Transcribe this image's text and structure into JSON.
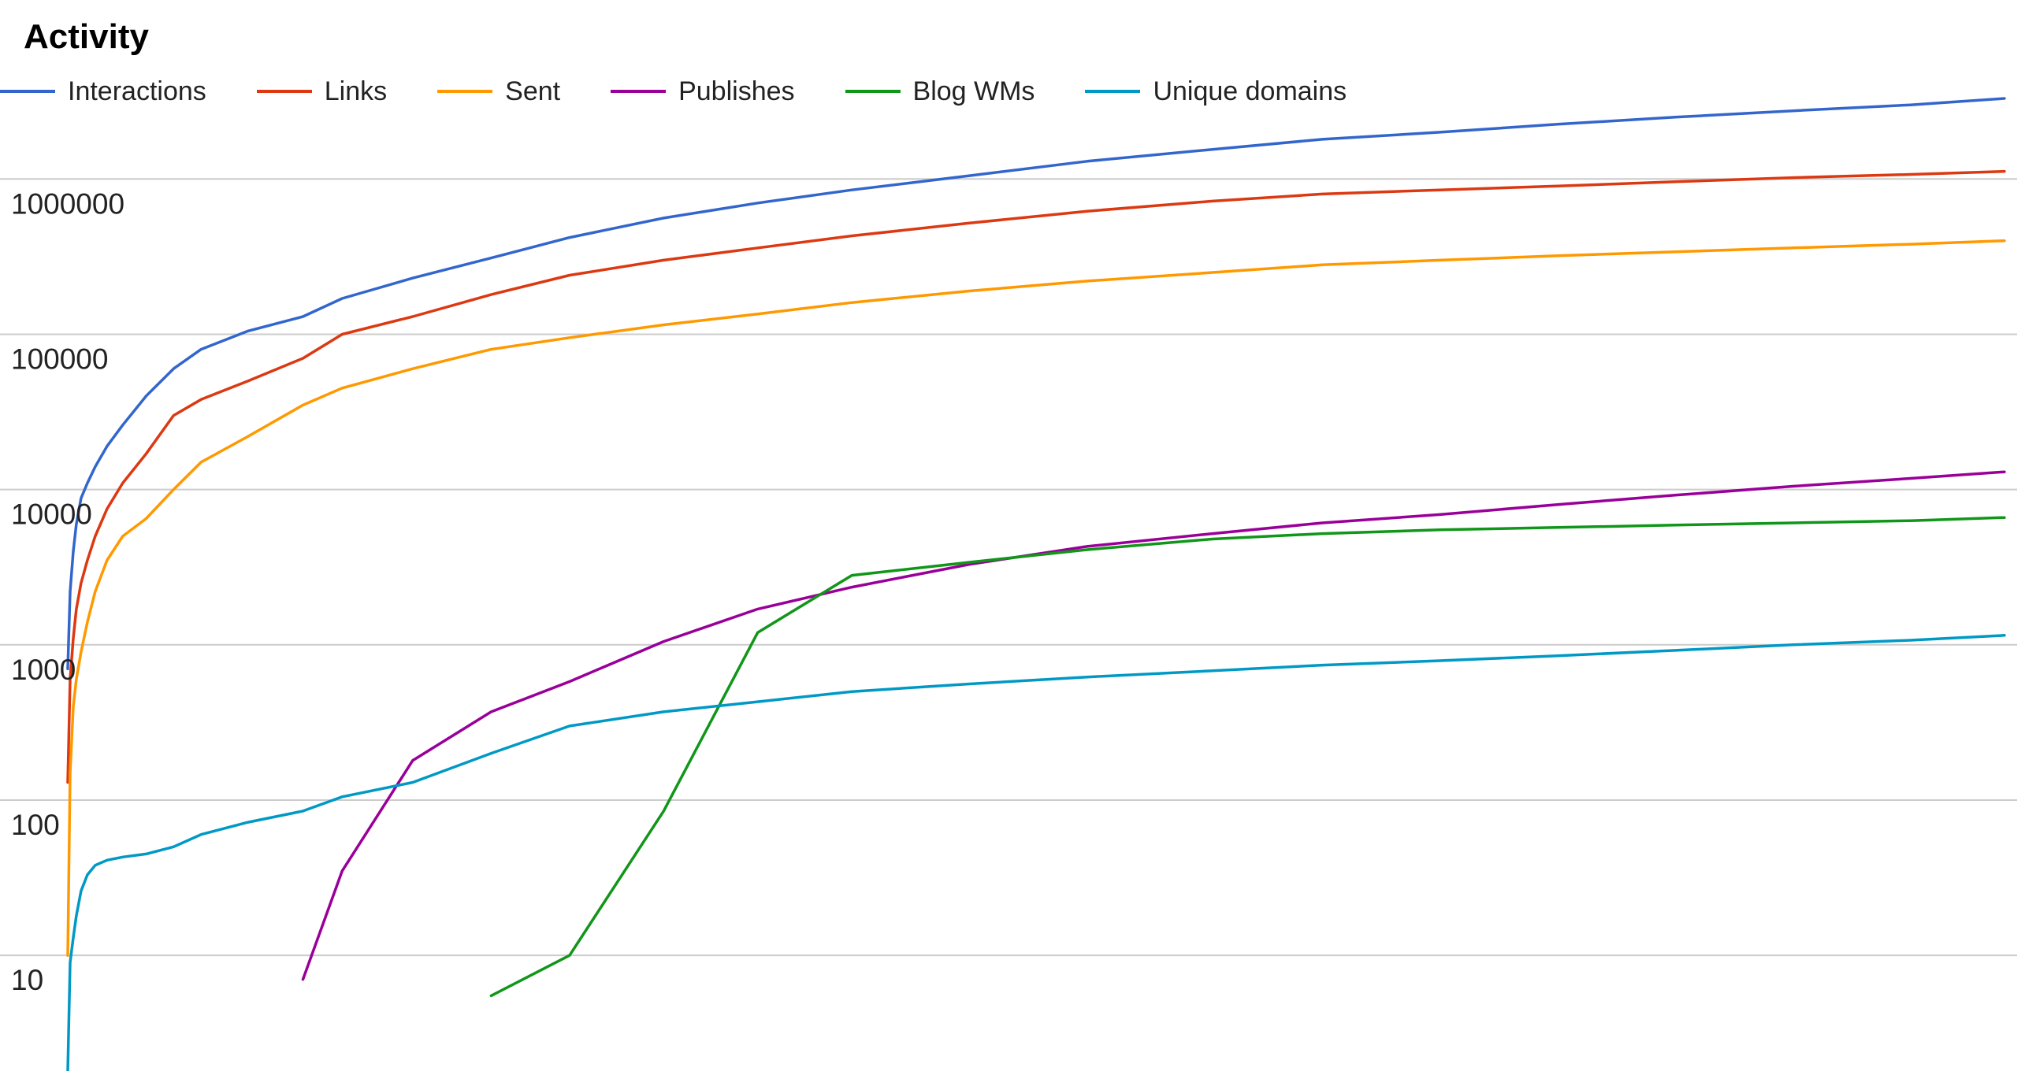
{
  "chart_data": {
    "type": "line",
    "title": "Activity",
    "xlabel": "",
    "ylabel": "",
    "y_scale": "log",
    "ylim": [
      1.8,
      3500000
    ],
    "x": [
      0,
      3,
      7,
      11,
      17,
      25,
      35,
      50,
      70,
      100,
      135,
      170,
      230,
      300,
      350,
      440,
      540,
      640,
      760,
      880,
      1000,
      1150,
      1300,
      1460,
      1600,
      1750,
      1900,
      2050,
      2200,
      2350,
      2470
    ],
    "xlim": [
      0,
      2480
    ],
    "y_ticks": [
      10,
      100,
      1000,
      10000,
      100000,
      1000000
    ],
    "y_tick_labels": [
      "10",
      "100",
      "1000",
      "10000",
      "100000",
      "1000000"
    ],
    "grid": true,
    "legend_position": "top-left",
    "series": [
      {
        "name": "Interactions",
        "color": "#3366cc",
        "values": [
          700,
          2200,
          4000,
          6000,
          8800,
          11000,
          14000,
          19000,
          26000,
          40000,
          60000,
          80000,
          105000,
          130000,
          170000,
          230000,
          310000,
          420000,
          560000,
          700000,
          850000,
          1050000,
          1300000,
          1550000,
          1800000,
          2000000,
          2250000,
          2500000,
          2750000,
          3000000,
          3300000
        ]
      },
      {
        "name": "Links",
        "color": "#dc3912",
        "values": [
          130,
          600,
          1100,
          1700,
          2500,
          3500,
          5000,
          7500,
          11000,
          17000,
          30000,
          38000,
          50000,
          70000,
          100000,
          130000,
          180000,
          240000,
          300000,
          360000,
          430000,
          520000,
          620000,
          720000,
          800000,
          850000,
          900000,
          960000,
          1020000,
          1070000,
          1120000
        ]
      },
      {
        "name": "Sent",
        "color": "#ff9900",
        "values": [
          10,
          150,
          400,
          600,
          900,
          1400,
          2200,
          3500,
          5000,
          6500,
          10000,
          15000,
          22000,
          35000,
          45000,
          60000,
          80000,
          95000,
          115000,
          135000,
          160000,
          190000,
          220000,
          250000,
          280000,
          300000,
          320000,
          340000,
          360000,
          380000,
          400000
        ]
      },
      {
        "name": "Publishes",
        "color": "#990099",
        "values": [
          null,
          null,
          null,
          null,
          null,
          null,
          null,
          null,
          null,
          null,
          null,
          null,
          null,
          7,
          35,
          180,
          370,
          580,
          1050,
          1700,
          2350,
          3300,
          4300,
          5200,
          6100,
          6900,
          8000,
          9200,
          10500,
          11800,
          13000
        ]
      },
      {
        "name": "Blog WMs",
        "color": "#109618",
        "values": [
          null,
          null,
          null,
          null,
          null,
          null,
          null,
          null,
          null,
          null,
          null,
          null,
          null,
          null,
          null,
          null,
          5.5,
          10,
          85,
          1200,
          2800,
          3400,
          4100,
          4800,
          5200,
          5500,
          5700,
          5900,
          6100,
          6300,
          6600
        ]
      },
      {
        "name": "Unique domains",
        "color": "#0099c6",
        "values": [
          1.8,
          9,
          13,
          18,
          26,
          33,
          38,
          41,
          43,
          45,
          50,
          60,
          72,
          85,
          105,
          130,
          200,
          300,
          370,
          430,
          500,
          560,
          620,
          680,
          740,
          790,
          850,
          920,
          1000,
          1070,
          1150
        ]
      }
    ]
  }
}
